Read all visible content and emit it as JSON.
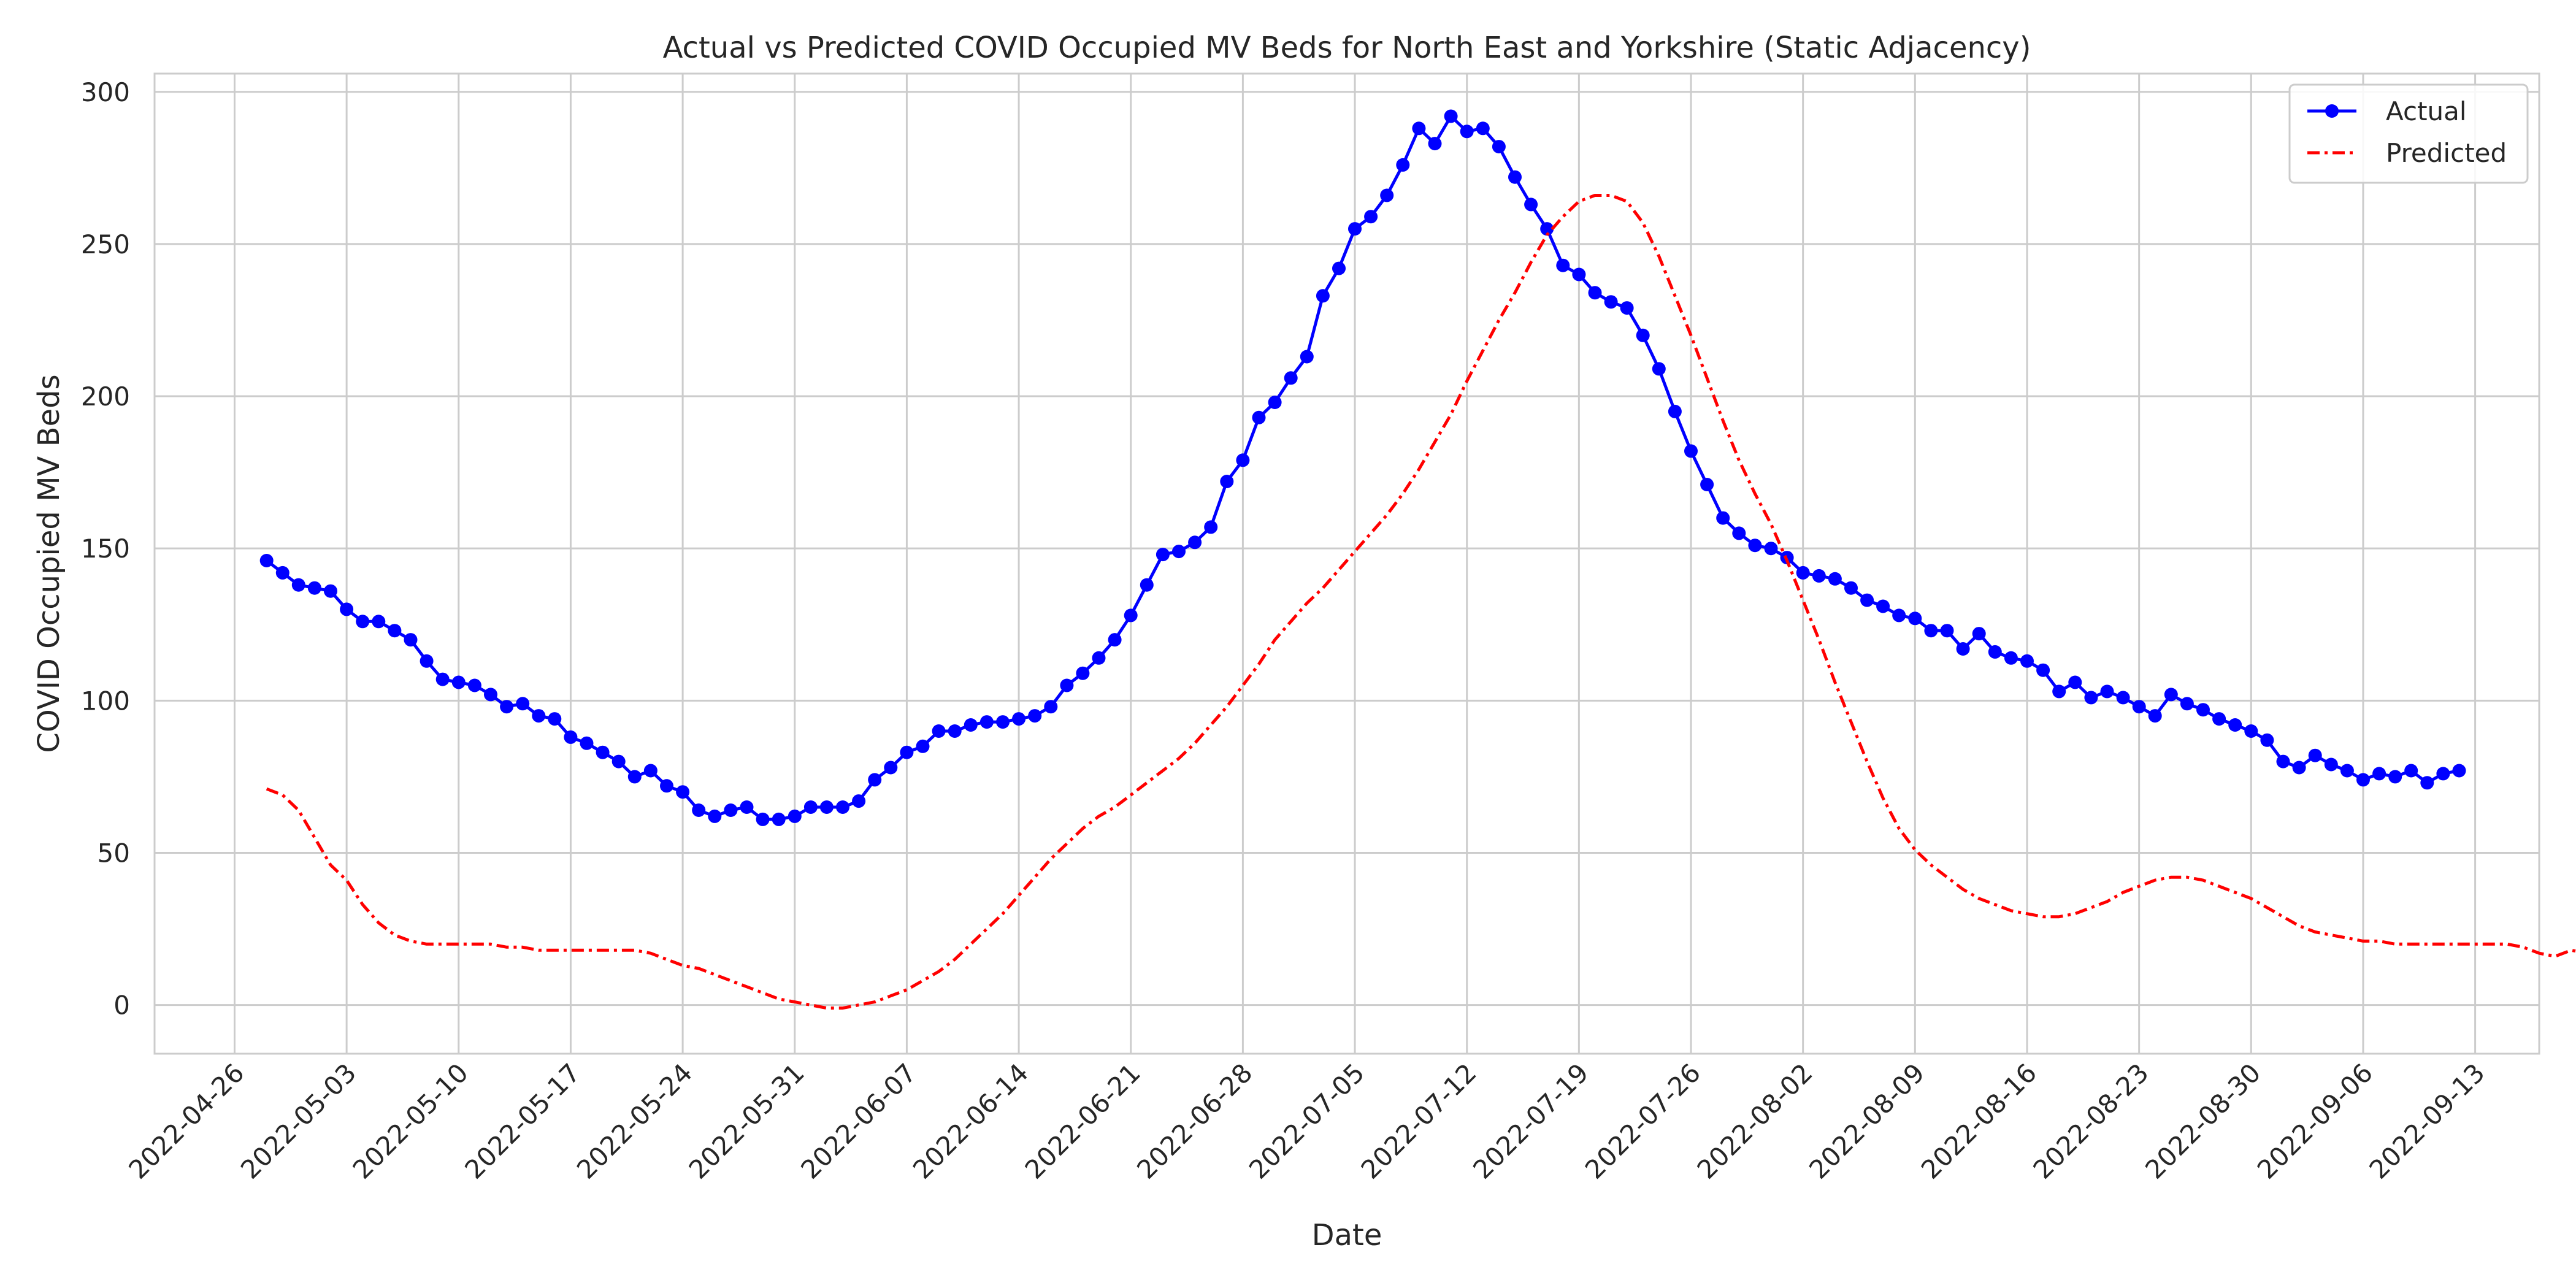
{
  "chart_data": {
    "type": "line",
    "title": "Actual vs Predicted COVID Occupied MV Beds for North East and Yorkshire (Static Adjacency)",
    "xlabel": "Date",
    "ylabel": "COVID Occupied MV Beds",
    "xlim": [
      "2022-04-21",
      "2022-09-17"
    ],
    "ylim": [
      -16,
      306
    ],
    "x_ticks": [
      "2022-04-26",
      "2022-05-03",
      "2022-05-10",
      "2022-05-17",
      "2022-05-24",
      "2022-05-31",
      "2022-06-07",
      "2022-06-14",
      "2022-06-21",
      "2022-06-28",
      "2022-07-05",
      "2022-07-12",
      "2022-07-19",
      "2022-07-26",
      "2022-08-02",
      "2022-08-09",
      "2022-08-16",
      "2022-08-23",
      "2022-08-30",
      "2022-09-06",
      "2022-09-13"
    ],
    "y_ticks": [
      0,
      50,
      100,
      150,
      200,
      250,
      300
    ],
    "grid": true,
    "legend_position": "top-right",
    "x_start": "2022-04-28",
    "x_step_days": 1,
    "series": [
      {
        "name": "Actual",
        "color": "#0000ff",
        "style": "solid-marker",
        "values": [
          146,
          142,
          138,
          137,
          136,
          130,
          126,
          126,
          123,
          120,
          113,
          107,
          106,
          105,
          102,
          98,
          99,
          95,
          94,
          88,
          86,
          83,
          80,
          75,
          77,
          72,
          70,
          64,
          62,
          64,
          65,
          61,
          61,
          62,
          65,
          65,
          65,
          67,
          74,
          78,
          83,
          85,
          90,
          90,
          92,
          93,
          93,
          94,
          95,
          98,
          105,
          109,
          114,
          120,
          128,
          138,
          148,
          149,
          152,
          157,
          172,
          179,
          193,
          198,
          206,
          213,
          233,
          242,
          255,
          259,
          266,
          276,
          288,
          283,
          292,
          287,
          288,
          282,
          272,
          263,
          255,
          243,
          240,
          234,
          231,
          229,
          220,
          209,
          195,
          182,
          171,
          160,
          155,
          151,
          150,
          147,
          142,
          141,
          140,
          137,
          133,
          131,
          128,
          127,
          123,
          123,
          117,
          122,
          116,
          114,
          113,
          110,
          103,
          106,
          101,
          103,
          101,
          98,
          95,
          102,
          99,
          97,
          94,
          92,
          90,
          87,
          80,
          78,
          82,
          79,
          77,
          74,
          76,
          75,
          77,
          73,
          76,
          77
        ]
      },
      {
        "name": "Predicted",
        "color": "#ff0000",
        "style": "dashdot",
        "values": [
          71,
          69,
          64,
          55,
          46,
          41,
          33,
          27,
          23,
          21,
          20,
          20,
          20,
          20,
          20,
          19,
          19,
          18,
          18,
          18,
          18,
          18,
          18,
          18,
          17,
          15,
          13,
          12,
          10,
          8,
          6,
          4,
          2,
          1,
          0,
          -1,
          -1,
          0,
          1,
          3,
          5,
          8,
          11,
          15,
          20,
          25,
          30,
          36,
          42,
          48,
          53,
          58,
          62,
          65,
          69,
          73,
          77,
          81,
          86,
          92,
          98,
          105,
          112,
          120,
          126,
          132,
          137,
          143,
          149,
          155,
          161,
          168,
          176,
          185,
          194,
          205,
          215,
          225,
          234,
          244,
          253,
          259,
          264,
          266,
          266,
          264,
          257,
          246,
          233,
          220,
          206,
          192,
          179,
          168,
          158,
          146,
          133,
          120,
          106,
          93,
          80,
          68,
          58,
          51,
          46,
          42,
          38,
          35,
          33,
          31,
          30,
          29,
          29,
          30,
          32,
          34,
          37,
          39,
          41,
          42,
          42,
          41,
          39,
          37,
          35,
          32,
          29,
          26,
          24,
          23,
          22,
          21,
          21,
          20,
          20,
          20,
          20,
          20,
          20,
          20,
          20,
          19,
          17,
          16,
          18,
          17,
          21
        ]
      }
    ]
  }
}
